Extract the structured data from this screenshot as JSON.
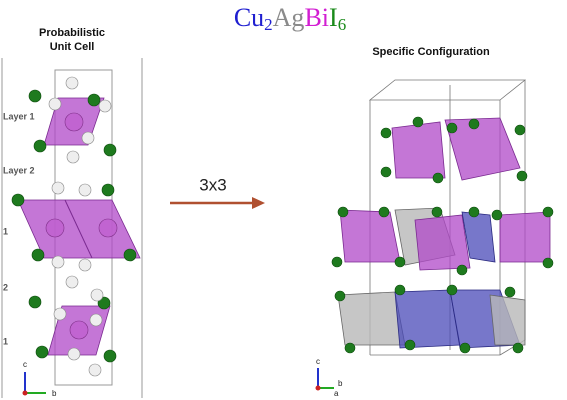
{
  "title": [
    "Cu",
    "2",
    "Ag",
    "Bi",
    "I",
    "6"
  ],
  "left": {
    "heading": [
      "Probabilistic",
      "Unit Cell"
    ],
    "layers": [
      "Layer 1",
      "Layer 2",
      "1",
      "2",
      "1"
    ],
    "axes": [
      "c",
      "b"
    ]
  },
  "arrow_label": "3x3",
  "right": {
    "heading": "Specific Configuration",
    "axes": [
      "c",
      "a",
      "b"
    ]
  }
}
